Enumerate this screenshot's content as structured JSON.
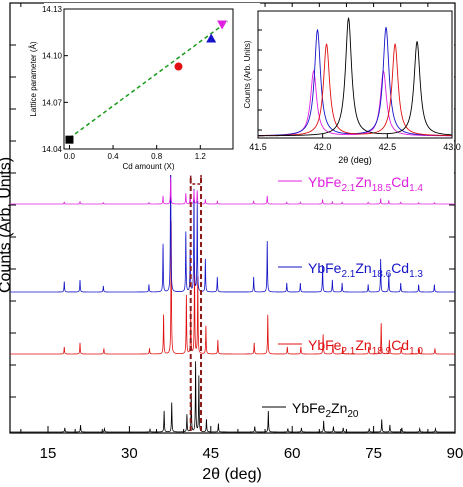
{
  "chart_data": [
    {
      "type": "line",
      "xlabel": "2θ (deg)",
      "ylabel": "Counts (Arb. Units)",
      "xlim": [
        8,
        90
      ],
      "xticks": [
        15,
        30,
        45,
        60,
        75,
        90
      ],
      "offset_stacked": true,
      "series": [
        {
          "name": "YbFe2Zn20",
          "label_parts": [
            [
              "YbFe",
              ""
            ],
            [
              "2",
              "sub"
            ],
            [
              "Zn",
              ""
            ],
            [
              "20",
              "sub"
            ]
          ],
          "color": "#000000",
          "peaks": [
            [
              18.1,
              0.06
            ],
            [
              21.0,
              0.1
            ],
            [
              25.4,
              0.05
            ],
            [
              33.8,
              0.04
            ],
            [
              36.4,
              0.3
            ],
            [
              37.8,
              0.42
            ],
            [
              40.6,
              0.25
            ],
            [
              41.4,
              0.55
            ],
            [
              42.2,
              1.0
            ],
            [
              42.8,
              0.8
            ],
            [
              44.2,
              0.18
            ],
            [
              46.4,
              0.12
            ],
            [
              53.1,
              0.08
            ],
            [
              55.6,
              0.3
            ],
            [
              59.2,
              0.05
            ],
            [
              61.7,
              0.06
            ],
            [
              65.8,
              0.16
            ],
            [
              67.6,
              0.08
            ],
            [
              69.4,
              0.06
            ],
            [
              74.2,
              0.05
            ],
            [
              76.5,
              0.18
            ],
            [
              78.0,
              0.1
            ],
            [
              80.2,
              0.06
            ],
            [
              83.5,
              0.05
            ],
            [
              86.4,
              0.05
            ]
          ]
        },
        {
          "name": "YbFe2.1Zn18.9Cd1.0",
          "label_parts": [
            [
              "YbFe",
              ""
            ],
            [
              "2.1",
              "sub"
            ],
            [
              "Zn",
              ""
            ],
            [
              "18.9",
              "sub"
            ],
            [
              "Cd",
              ""
            ],
            [
              "1.0",
              "sub"
            ]
          ],
          "color": "#e01010",
          "peaks": [
            [
              18.0,
              0.05
            ],
            [
              20.9,
              0.08
            ],
            [
              25.3,
              0.04
            ],
            [
              33.7,
              0.04
            ],
            [
              36.3,
              0.28
            ],
            [
              37.7,
              0.95
            ],
            [
              40.5,
              0.42
            ],
            [
              41.3,
              0.3
            ],
            [
              42.0,
              0.65
            ],
            [
              42.6,
              0.55
            ],
            [
              44.1,
              0.2
            ],
            [
              46.3,
              0.1
            ],
            [
              53.0,
              0.08
            ],
            [
              55.5,
              0.28
            ],
            [
              59.1,
              0.05
            ],
            [
              61.6,
              0.05
            ],
            [
              65.7,
              0.14
            ],
            [
              67.5,
              0.07
            ],
            [
              69.3,
              0.05
            ],
            [
              74.1,
              0.05
            ],
            [
              76.4,
              0.22
            ],
            [
              77.9,
              0.1
            ],
            [
              80.1,
              0.05
            ],
            [
              83.4,
              0.04
            ],
            [
              86.3,
              0.04
            ]
          ]
        },
        {
          "name": "YbFe2.1Zn18.6Cd1.3",
          "label_parts": [
            [
              "YbFe",
              ""
            ],
            [
              "2.1",
              "sub"
            ],
            [
              "Zn",
              ""
            ],
            [
              "18.6",
              "sub"
            ],
            [
              "Cd",
              ""
            ],
            [
              "1.3",
              "sub"
            ]
          ],
          "color": "#1414c8",
          "peaks": [
            [
              18.0,
              0.07
            ],
            [
              20.9,
              0.08
            ],
            [
              25.2,
              0.04
            ],
            [
              33.6,
              0.05
            ],
            [
              36.2,
              0.32
            ],
            [
              37.6,
              1.0
            ],
            [
              40.4,
              0.4
            ],
            [
              41.2,
              0.28
            ],
            [
              41.9,
              0.68
            ],
            [
              42.5,
              0.6
            ],
            [
              44.0,
              0.22
            ],
            [
              46.2,
              0.1
            ],
            [
              52.9,
              0.1
            ],
            [
              55.4,
              0.34
            ],
            [
              59.0,
              0.06
            ],
            [
              61.5,
              0.06
            ],
            [
              65.6,
              0.18
            ],
            [
              67.4,
              0.08
            ],
            [
              69.2,
              0.06
            ],
            [
              74.0,
              0.05
            ],
            [
              76.3,
              0.22
            ],
            [
              77.8,
              0.12
            ],
            [
              80.0,
              0.06
            ],
            [
              83.3,
              0.05
            ],
            [
              86.2,
              0.05
            ]
          ]
        },
        {
          "name": "YbFe2.1Zn18.5Cd1.4",
          "label_parts": [
            [
              "YbFe",
              ""
            ],
            [
              "2.1",
              "sub"
            ],
            [
              "Zn",
              ""
            ],
            [
              "18.5",
              "sub"
            ],
            [
              "Cd",
              ""
            ],
            [
              "1.4",
              "sub"
            ]
          ],
          "color": "#e020e0",
          "peaks": [
            [
              18.0,
              0.04
            ],
            [
              20.9,
              0.05
            ],
            [
              25.2,
              0.03
            ],
            [
              33.6,
              0.03
            ],
            [
              36.2,
              0.18
            ],
            [
              37.6,
              0.6
            ],
            [
              40.4,
              0.24
            ],
            [
              41.2,
              0.2
            ],
            [
              41.9,
              0.3
            ],
            [
              42.5,
              0.3
            ],
            [
              44.0,
              0.1
            ],
            [
              46.2,
              0.06
            ],
            [
              52.9,
              0.06
            ],
            [
              55.4,
              0.18
            ],
            [
              59.0,
              0.04
            ],
            [
              61.5,
              0.04
            ],
            [
              65.6,
              0.1
            ],
            [
              67.4,
              0.05
            ],
            [
              69.2,
              0.04
            ],
            [
              74.0,
              0.04
            ],
            [
              76.3,
              0.12
            ],
            [
              77.8,
              0.07
            ],
            [
              80.0,
              0.04
            ],
            [
              83.3,
              0.03
            ],
            [
              86.2,
              0.03
            ]
          ]
        }
      ]
    },
    {
      "type": "scatter",
      "xlabel": "Cd amount (X)",
      "ylabel": "Lattice parameter (Å)",
      "xlim": [
        -0.05,
        1.5
      ],
      "ylim": [
        14.04,
        14.13
      ],
      "xticks": [
        0.0,
        0.4,
        0.8,
        1.2
      ],
      "yticks": [
        14.04,
        14.07,
        14.1,
        14.13
      ],
      "points": [
        {
          "x": 0.0,
          "y": 14.046,
          "marker": "square",
          "color": "#000000"
        },
        {
          "x": 1.0,
          "y": 14.093,
          "marker": "circle",
          "color": "#e01010"
        },
        {
          "x": 1.3,
          "y": 14.111,
          "marker": "triangle-up",
          "color": "#1414c8"
        },
        {
          "x": 1.4,
          "y": 14.12,
          "marker": "triangle-down",
          "color": "#e020e0"
        }
      ],
      "fit_line": {
        "x": [
          0.0,
          1.45
        ],
        "y": [
          14.047,
          14.122
        ],
        "color": "#1a9a1a",
        "style": "dashed"
      }
    },
    {
      "type": "line",
      "xlabel": "2θ (deg)",
      "ylabel": "Counts (Arb. Units)",
      "xlim": [
        41.5,
        43.0
      ],
      "xticks": [
        41.5,
        42.0,
        42.5,
        43.0
      ],
      "series": [
        {
          "color": "#e020e0",
          "peaks": [
            [
              41.93,
              0.55
            ],
            [
              42.47,
              0.55
            ]
          ]
        },
        {
          "color": "#1414c8",
          "peaks": [
            [
              41.96,
              0.9
            ],
            [
              42.49,
              0.92
            ]
          ]
        },
        {
          "color": "#e01010",
          "peaks": [
            [
              42.03,
              0.78
            ],
            [
              42.56,
              0.78
            ]
          ]
        },
        {
          "color": "#000000",
          "peaks": [
            [
              42.2,
              1.0
            ],
            [
              42.73,
              0.8
            ]
          ]
        }
      ]
    }
  ]
}
